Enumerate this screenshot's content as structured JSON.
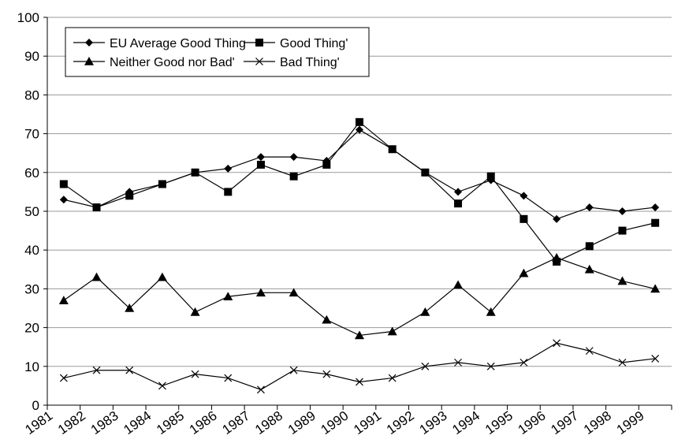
{
  "chart_data": {
    "type": "line",
    "title": "",
    "xlabel": "",
    "ylabel": "",
    "x": [
      1981,
      1982,
      1983,
      1984,
      1985,
      1986,
      1987,
      1988,
      1989,
      1990,
      1991,
      1992,
      1993,
      1994,
      1995,
      1996,
      1997,
      1998,
      1999
    ],
    "x_tick_labels": [
      "1981",
      "1982",
      "1983",
      "1984",
      "1985",
      "1986",
      "1987",
      "1988",
      "1989",
      "1990",
      "1991",
      "1992",
      "1993",
      "1994",
      "1995",
      "1996",
      "1997",
      "1998",
      "1999"
    ],
    "ylim": [
      0,
      100
    ],
    "y_ticks": [
      0,
      10,
      20,
      30,
      40,
      50,
      60,
      70,
      80,
      90,
      100
    ],
    "grid": "horizontal",
    "legend_position": "top-left",
    "series": [
      {
        "name": "EU Average Good Thing",
        "marker": "diamond",
        "values": [
          53,
          51,
          55,
          57,
          60,
          61,
          64,
          64,
          63,
          71,
          66,
          60,
          55,
          58,
          54,
          48,
          51,
          50,
          51
        ]
      },
      {
        "name": "Good Thing'",
        "marker": "square",
        "values": [
          57,
          51,
          54,
          57,
          60,
          55,
          62,
          59,
          62,
          73,
          66,
          60,
          52,
          59,
          48,
          37,
          41,
          45,
          47
        ]
      },
      {
        "name": "Neither Good nor Bad'",
        "marker": "triangle",
        "values": [
          27,
          33,
          25,
          33,
          24,
          28,
          29,
          29,
          22,
          18,
          19,
          24,
          31,
          24,
          34,
          38,
          35,
          32,
          30
        ]
      },
      {
        "name": "Bad Thing'",
        "marker": "x",
        "values": [
          7,
          9,
          9,
          5,
          8,
          7,
          4,
          9,
          8,
          6,
          7,
          10,
          11,
          10,
          11,
          16,
          14,
          11,
          12
        ]
      }
    ]
  }
}
